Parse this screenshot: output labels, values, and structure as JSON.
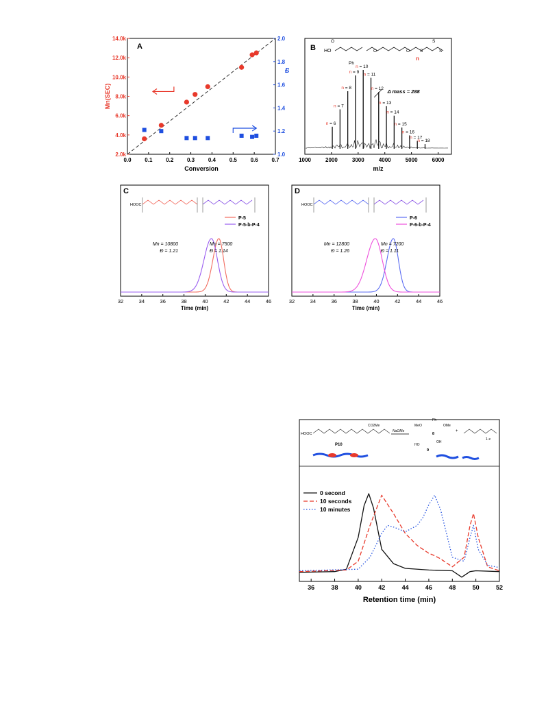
{
  "colors": {
    "red": "#e8392b",
    "blue": "#1f4fe0",
    "black": "#111111",
    "grey": "#444444",
    "salmon": "#f26b5e",
    "violet": "#9a5cf0",
    "lightblue": "#5b6cf2",
    "magenta": "#ee4fdc"
  },
  "panelA": {
    "letter": "A",
    "xlabel": "Conversion",
    "ylabel_left": "Mn(SEC)",
    "ylabel_right": "Đ",
    "xticks": [
      "0.0",
      "0.1",
      "0.2",
      "0.3",
      "0.4",
      "0.5",
      "0.6",
      "0.7"
    ],
    "yticks_left": [
      "2.0k",
      "4.0k",
      "6.0k",
      "8.0k",
      "10.0k",
      "12.0k",
      "14.0k"
    ],
    "yticks_right": [
      "1.0",
      "1.2",
      "1.4",
      "1.6",
      "1.8",
      "2.0"
    ]
  },
  "panelB": {
    "letter": "B",
    "xlabel": "m/z",
    "xticks": [
      "1000",
      "2000",
      "3000",
      "4000",
      "5000",
      "6000"
    ],
    "mass_label": "Δ mass = 288",
    "n_labels": [
      "n = 6",
      "n = 7",
      "n = 8",
      "n = 9",
      "n = 10",
      "n = 11",
      "n = 12",
      "n = 13",
      "n = 14",
      "n = 15",
      "n = 16",
      "n = 17",
      "n = 18"
    ],
    "struct_label_n": "n",
    "struct_text": [
      "HO",
      "O",
      "Ph",
      "O",
      "O",
      "O",
      "S",
      "S",
      "S"
    ]
  },
  "panelC": {
    "letter": "C",
    "xlabel": "Time (min)",
    "xticks": [
      "32",
      "34",
      "36",
      "38",
      "40",
      "42",
      "44",
      "46"
    ],
    "legend": [
      "P-5",
      "P-5-b-P-4"
    ],
    "ann_left": [
      "Mn = 10800",
      "Đ = 1.21"
    ],
    "ann_right": [
      "Mn = 7500",
      "Đ = 1.14"
    ],
    "struct_label": "HOOC"
  },
  "panelD": {
    "letter": "D",
    "xlabel": "Time (min)",
    "xticks": [
      "32",
      "34",
      "36",
      "38",
      "40",
      "42",
      "44",
      "46"
    ],
    "legend": [
      "P-6",
      "P-6-b-P-4"
    ],
    "ann_left": [
      "Mn = 12800",
      "Đ = 1.26"
    ],
    "ann_right": [
      "Mn = 7200",
      "Đ = 1.11"
    ],
    "struct_label": "HOOC"
  },
  "panelE": {
    "xlabel": "Retention time (min)",
    "xticks": [
      "36",
      "38",
      "40",
      "42",
      "44",
      "46",
      "48",
      "50",
      "52"
    ],
    "legend": [
      "0 second",
      "10 seconds",
      "10 minutes"
    ],
    "scheme_text": [
      "HOOC",
      "P10",
      "NaOMe",
      "CO2Me",
      "MeO",
      "OMe",
      "Ph",
      "8",
      "+",
      "HO",
      "OH",
      "9",
      "x",
      "1-x",
      "n",
      "y",
      "S",
      "S"
    ]
  },
  "chart_data": [
    {
      "type": "scatter",
      "xlabel": "Conversion",
      "ylabel": "Mn(SEC)",
      "y2label": "Đ",
      "xlim": [
        0,
        0.7
      ],
      "ylim": [
        2000,
        14000
      ],
      "y2lim": [
        1.0,
        2.0
      ],
      "series": [
        {
          "axis": "left",
          "x": [
            0.08,
            0.16,
            0.28,
            0.32,
            0.38,
            0.54,
            0.59,
            0.61
          ],
          "y": [
            3600,
            5000,
            7400,
            8200,
            9000,
            11000,
            12300,
            12500
          ]
        },
        {
          "axis": "right",
          "x": [
            0.08,
            0.16,
            0.28,
            0.32,
            0.38,
            0.54,
            0.59,
            0.61
          ],
          "y": [
            1.21,
            1.2,
            1.14,
            1.14,
            1.14,
            1.16,
            1.15,
            1.16
          ]
        }
      ],
      "trend_line": {
        "x": [
          0,
          0.7
        ],
        "y": [
          2000,
          14000
        ]
      }
    },
    {
      "type": "bar",
      "xlabel": "m/z",
      "xlim": [
        1000,
        6500
      ],
      "categories": [
        2030,
        2320,
        2610,
        2900,
        3190,
        3480,
        3770,
        4060,
        4350,
        4640,
        4930,
        5220,
        5510
      ],
      "values": [
        0.28,
        0.5,
        0.73,
        0.93,
        1.0,
        0.9,
        0.72,
        0.54,
        0.42,
        0.27,
        0.17,
        0.1,
        0.06
      ]
    },
    {
      "type": "line",
      "xlabel": "Time (min)",
      "xlim": [
        32,
        46
      ],
      "series": [
        {
          "name": "P-5",
          "peak": 41.3,
          "width": 0.8
        },
        {
          "name": "P-5-b-P-4",
          "peak": 40.6,
          "width": 1.0
        }
      ]
    },
    {
      "type": "line",
      "xlabel": "Time (min)",
      "xlim": [
        32,
        46
      ],
      "series": [
        {
          "name": "P-6",
          "peak": 41.6,
          "width": 0.85
        },
        {
          "name": "P-6-b-P-4",
          "peak": 39.9,
          "width": 1.15
        }
      ]
    },
    {
      "type": "line",
      "xlabel": "Retention time (min)",
      "xlim": [
        35,
        52
      ],
      "series": [
        {
          "name": "0 second",
          "x": [
            35,
            38,
            39,
            40,
            40.5,
            40.9,
            41.3,
            42,
            43,
            44,
            46,
            48,
            48.8,
            49.5,
            50,
            52
          ],
          "y": [
            0.01,
            0.02,
            0.05,
            0.45,
            0.85,
            1.0,
            0.82,
            0.3,
            0.12,
            0.06,
            0.04,
            0.03,
            -0.05,
            0.02,
            0.03,
            0.02
          ]
        },
        {
          "name": "10 seconds",
          "x": [
            35,
            39,
            40,
            41,
            42,
            43,
            44,
            45,
            46,
            46.5,
            47,
            48,
            49,
            49.5,
            49.8,
            50.2,
            51,
            52
          ],
          "y": [
            0.02,
            0.04,
            0.15,
            0.6,
            0.98,
            0.75,
            0.5,
            0.35,
            0.25,
            0.22,
            0.18,
            0.08,
            0.2,
            0.6,
            0.75,
            0.45,
            0.08,
            0.03
          ]
        },
        {
          "name": "10 minutes",
          "x": [
            35,
            40,
            41,
            42,
            42.5,
            43,
            44,
            45,
            45.5,
            46,
            46.5,
            47,
            48,
            49,
            49.5,
            49.8,
            50.2,
            51,
            52
          ],
          "y": [
            0.03,
            0.05,
            0.2,
            0.5,
            0.6,
            0.58,
            0.52,
            0.6,
            0.7,
            0.86,
            0.98,
            0.8,
            0.2,
            0.15,
            0.45,
            0.6,
            0.3,
            0.1,
            0.07
          ]
        }
      ]
    }
  ]
}
